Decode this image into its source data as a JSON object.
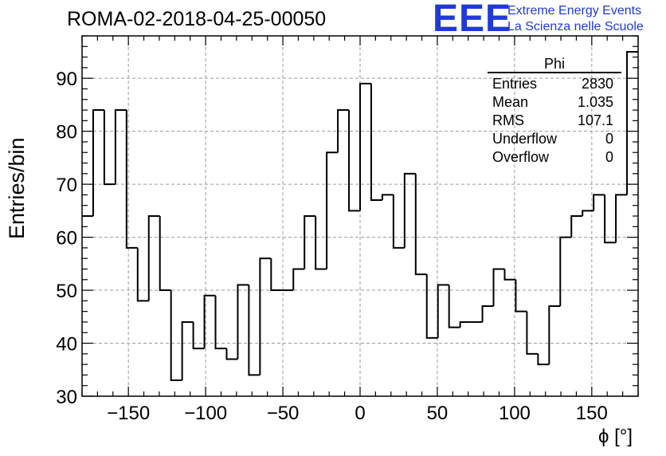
{
  "title": "ROMA-02-2018-04-25-00050",
  "logo": {
    "mark": "EEE",
    "line1": "Extreme Energy Events",
    "line2": "La Scienza nelle Scuole",
    "color": "#1f3ad6"
  },
  "stats_box": {
    "name": "Phi",
    "rows": [
      {
        "label": "Entries",
        "value": "2830"
      },
      {
        "label": "Mean",
        "value": "1.035"
      },
      {
        "label": "RMS",
        "value": "107.1"
      },
      {
        "label": "Underflow",
        "value": "0"
      },
      {
        "label": "Overflow",
        "value": "0"
      }
    ]
  },
  "chart_data": {
    "type": "bar",
    "style": "step-histogram",
    "title": "ROMA-02-2018-04-25-00050",
    "xlabel": "ϕ [°]",
    "ylabel": "Entries/bin",
    "xlim": [
      -180,
      180
    ],
    "ylim": [
      30,
      98
    ],
    "bin_width": 7.2,
    "bin_edges_start": -180,
    "xticks": [
      -150,
      -100,
      -50,
      0,
      50,
      100,
      150
    ],
    "xtick_labels": [
      "−150",
      "−100",
      "−50",
      "0",
      "50",
      "100",
      "150"
    ],
    "yticks": [
      30,
      40,
      50,
      60,
      70,
      80,
      90
    ],
    "values": [
      64,
      84,
      70,
      84,
      58,
      48,
      64,
      50,
      33,
      44,
      39,
      49,
      39,
      37,
      51,
      34,
      56,
      50,
      50,
      54,
      64,
      54,
      76,
      84,
      65,
      89,
      67,
      68,
      58,
      72,
      53,
      41,
      51,
      43,
      44,
      44,
      47,
      54,
      52,
      46,
      38,
      36,
      47,
      60,
      64,
      65,
      68,
      59,
      68,
      95
    ],
    "grid": true,
    "line_color": "#000000"
  }
}
